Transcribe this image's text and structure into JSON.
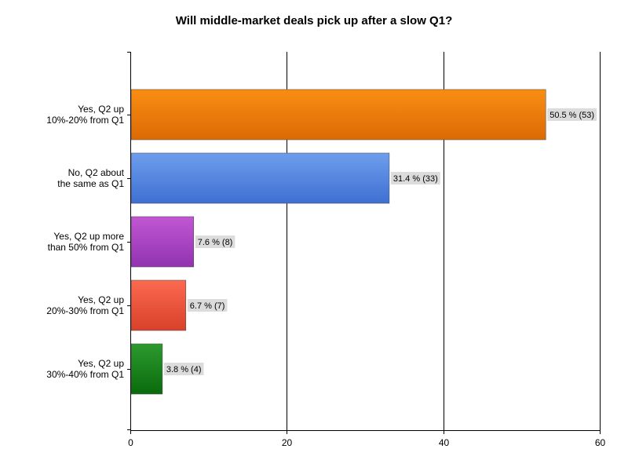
{
  "chart_data": {
    "type": "bar",
    "orientation": "horizontal",
    "title": "Will middle-market deals pick up after a slow Q1?",
    "xlabel": "",
    "ylabel": "",
    "xlim": [
      0,
      60
    ],
    "x_ticks": [
      "0",
      "20",
      "40",
      "60"
    ],
    "grid": true,
    "categories": [
      [
        "Yes, Q2 up",
        "10%-20% from Q1"
      ],
      [
        "No, Q2 about",
        "the same as Q1"
      ],
      [
        "Yes, Q2 up more",
        "than 50% from Q1"
      ],
      [
        "Yes, Q2 up",
        "20%-30% from Q1"
      ],
      [
        "Yes, Q2 up",
        "30%-40% from Q1"
      ]
    ],
    "values": [
      53,
      33,
      8,
      7,
      4
    ],
    "data_labels": [
      "50.5 % (53)",
      "31.4 % (33)",
      "7.6 % (8)",
      "6.7 % (7)",
      "3.8 % (4)"
    ],
    "colors": [
      [
        "#f98e12",
        "#dc6a05"
      ],
      [
        "#6d9eed",
        "#3f6fd2"
      ],
      [
        "#c257d2",
        "#9133b0"
      ],
      [
        "#fb6a50",
        "#d9402a"
      ],
      [
        "#2c9a2e",
        "#0a6a0c"
      ]
    ]
  }
}
